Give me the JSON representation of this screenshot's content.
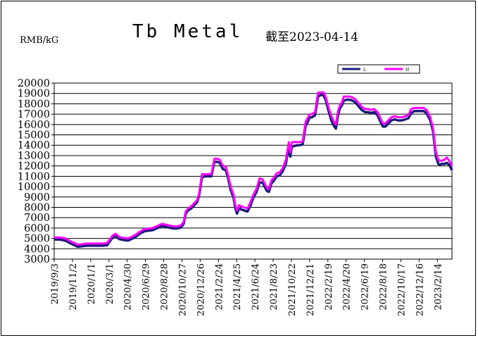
{
  "header": {
    "unit": "RMB/kG",
    "title": "Tb Metal",
    "as_of": "截至2023-04-14"
  },
  "chart_data": {
    "type": "line",
    "title": "Tb Metal",
    "ylabel": "RMB/kG",
    "xlabel": "",
    "ylim": [
      3000,
      20000
    ],
    "ytick_step": 1000,
    "grid": true,
    "legend_position": "top-right",
    "x_tick_labels": [
      "2019/9/3",
      "2019/11/2",
      "2020/1/1",
      "2020/3/1",
      "2020/4/30",
      "2020/6/29",
      "2020/8/28",
      "2020/10/27",
      "2020/12/26",
      "2021/2/24",
      "2021/4/25",
      "2021/6/24",
      "2021/8/23",
      "2021/10/22",
      "2021/12/21",
      "2022/2/19",
      "2022/4/20",
      "2022/6/19",
      "2022/8/18",
      "2022/10/17",
      "2022/12/16",
      "2023/2/14"
    ],
    "x_start": "2019-09-03",
    "x_end": "2023-04-14",
    "series": [
      {
        "name": "L",
        "color": "#1a1a7a",
        "x": [
          "2019-09-03",
          "2019-09-20",
          "2019-10-10",
          "2019-10-25",
          "2019-11-05",
          "2019-11-20",
          "2019-12-05",
          "2019-12-20",
          "2020-01-10",
          "2020-01-25",
          "2020-02-10",
          "2020-02-25",
          "2020-03-05",
          "2020-03-15",
          "2020-03-25",
          "2020-04-05",
          "2020-04-20",
          "2020-05-05",
          "2020-05-20",
          "2020-06-01",
          "2020-06-15",
          "2020-06-29",
          "2020-07-10",
          "2020-07-25",
          "2020-08-10",
          "2020-08-20",
          "2020-08-28",
          "2020-09-10",
          "2020-09-25",
          "2020-10-10",
          "2020-10-27",
          "2020-11-05",
          "2020-11-12",
          "2020-11-20",
          "2020-11-30",
          "2020-12-10",
          "2020-12-20",
          "2020-12-26",
          "2021-01-05",
          "2021-01-15",
          "2021-01-25",
          "2021-02-05",
          "2021-02-15",
          "2021-02-24",
          "2021-03-05",
          "2021-03-15",
          "2021-03-25",
          "2021-04-01",
          "2021-04-10",
          "2021-04-20",
          "2021-04-25",
          "2021-05-01",
          "2021-05-08",
          "2021-05-15",
          "2021-05-25",
          "2021-06-05",
          "2021-06-15",
          "2021-06-24",
          "2021-07-05",
          "2021-07-15",
          "2021-07-25",
          "2021-08-01",
          "2021-08-08",
          "2021-08-15",
          "2021-08-23",
          "2021-09-01",
          "2021-09-10",
          "2021-09-20",
          "2021-09-30",
          "2021-10-10",
          "2021-10-20",
          "2021-10-25",
          "2021-10-30",
          "2021-11-05",
          "2021-11-15",
          "2021-11-25",
          "2021-12-05",
          "2021-12-15",
          "2021-12-21",
          "2021-12-28",
          "2022-01-05",
          "2022-01-15",
          "2022-01-25",
          "2022-02-05",
          "2022-02-12",
          "2022-02-19",
          "2022-02-28",
          "2022-03-10",
          "2022-03-18",
          "2022-03-25",
          "2022-04-01",
          "2022-04-08",
          "2022-04-15",
          "2022-04-20",
          "2022-04-30",
          "2022-05-10",
          "2022-05-20",
          "2022-05-30",
          "2022-06-10",
          "2022-06-19",
          "2022-06-30",
          "2022-07-10",
          "2022-07-20",
          "2022-07-30",
          "2022-08-10",
          "2022-08-18",
          "2022-08-28",
          "2022-09-05",
          "2022-09-15",
          "2022-09-25",
          "2022-10-05",
          "2022-10-17",
          "2022-10-30",
          "2022-11-10",
          "2022-11-20",
          "2022-11-30",
          "2022-12-10",
          "2022-12-16",
          "2022-12-30",
          "2023-01-10",
          "2023-01-20",
          "2023-02-01",
          "2023-02-10",
          "2023-02-14",
          "2023-02-20",
          "2023-02-28",
          "2023-03-05",
          "2023-03-10",
          "2023-03-20",
          "2023-03-28",
          "2023-04-05",
          "2023-04-14"
        ],
        "values": [
          5000,
          5000,
          4900,
          4650,
          4500,
          4300,
          4350,
          4400,
          4400,
          4400,
          4400,
          4450,
          4800,
          5200,
          5350,
          5050,
          4950,
          4900,
          5100,
          5300,
          5600,
          5800,
          5850,
          5900,
          6100,
          6250,
          6300,
          6200,
          6100,
          6050,
          6150,
          6500,
          7500,
          7800,
          8000,
          8300,
          8600,
          9200,
          11000,
          11100,
          11100,
          11100,
          12500,
          12500,
          12400,
          11800,
          11700,
          11000,
          9800,
          9000,
          8100,
          7500,
          8000,
          7900,
          7800,
          7700,
          8300,
          9000,
          9600,
          10500,
          10500,
          10100,
          9700,
          9600,
          10400,
          10700,
          11100,
          11200,
          11600,
          12300,
          14000,
          13000,
          14000,
          14000,
          14100,
          14100,
          14200,
          16000,
          16300,
          16800,
          16800,
          17000,
          18800,
          19000,
          18900,
          18500,
          17500,
          16500,
          16000,
          15700,
          17000,
          17700,
          18000,
          18400,
          18500,
          18500,
          18400,
          18200,
          17800,
          17500,
          17300,
          17300,
          17200,
          17300,
          17000,
          16500,
          15900,
          15900,
          16200,
          16500,
          16600,
          16500,
          16500,
          16600,
          16700,
          17200,
          17400,
          17400,
          17400,
          17400,
          17200,
          16500,
          15500,
          14500,
          13000,
          12300,
          12200,
          12300,
          12300,
          12400,
          12200,
          11700
        ]
      },
      {
        "name": "H",
        "color": "#ff00ff",
        "x": [
          "2019-09-03",
          "2019-09-20",
          "2019-10-10",
          "2019-10-25",
          "2019-11-05",
          "2019-11-20",
          "2019-12-05",
          "2019-12-20",
          "2020-01-10",
          "2020-01-25",
          "2020-02-10",
          "2020-02-25",
          "2020-03-05",
          "2020-03-15",
          "2020-03-25",
          "2020-04-05",
          "2020-04-20",
          "2020-05-05",
          "2020-05-20",
          "2020-06-01",
          "2020-06-15",
          "2020-06-29",
          "2020-07-10",
          "2020-07-25",
          "2020-08-10",
          "2020-08-20",
          "2020-08-28",
          "2020-09-10",
          "2020-09-25",
          "2020-10-10",
          "2020-10-27",
          "2020-11-05",
          "2020-11-12",
          "2020-11-20",
          "2020-11-30",
          "2020-12-10",
          "2020-12-20",
          "2020-12-26",
          "2021-01-05",
          "2021-01-15",
          "2021-01-25",
          "2021-02-05",
          "2021-02-15",
          "2021-02-24",
          "2021-03-05",
          "2021-03-15",
          "2021-03-25",
          "2021-04-01",
          "2021-04-10",
          "2021-04-20",
          "2021-04-25",
          "2021-05-01",
          "2021-05-08",
          "2021-05-15",
          "2021-05-25",
          "2021-06-05",
          "2021-06-15",
          "2021-06-24",
          "2021-07-05",
          "2021-07-15",
          "2021-07-25",
          "2021-08-01",
          "2021-08-08",
          "2021-08-15",
          "2021-08-23",
          "2021-09-01",
          "2021-09-10",
          "2021-09-20",
          "2021-09-30",
          "2021-10-10",
          "2021-10-20",
          "2021-10-25",
          "2021-10-30",
          "2021-11-05",
          "2021-11-15",
          "2021-11-25",
          "2021-12-05",
          "2021-12-15",
          "2021-12-21",
          "2021-12-28",
          "2022-01-05",
          "2022-01-15",
          "2022-01-25",
          "2022-02-05",
          "2022-02-12",
          "2022-02-19",
          "2022-02-28",
          "2022-03-10",
          "2022-03-18",
          "2022-03-25",
          "2022-04-01",
          "2022-04-08",
          "2022-04-15",
          "2022-04-20",
          "2022-04-30",
          "2022-05-10",
          "2022-05-20",
          "2022-05-30",
          "2022-06-10",
          "2022-06-19",
          "2022-06-30",
          "2022-07-10",
          "2022-07-20",
          "2022-07-30",
          "2022-08-10",
          "2022-08-18",
          "2022-08-28",
          "2022-09-05",
          "2022-09-15",
          "2022-09-25",
          "2022-10-05",
          "2022-10-17",
          "2022-10-30",
          "2022-11-10",
          "2022-11-20",
          "2022-11-30",
          "2022-12-10",
          "2022-12-16",
          "2022-12-30",
          "2023-01-10",
          "2023-01-20",
          "2023-02-01",
          "2023-02-10",
          "2023-02-14",
          "2023-02-20",
          "2023-02-28",
          "2023-03-05",
          "2023-03-10",
          "2023-03-20",
          "2023-03-28",
          "2023-04-05",
          "2023-04-14"
        ],
        "values": [
          5100,
          5100,
          5000,
          4750,
          4600,
          4400,
          4450,
          4500,
          4500,
          4500,
          4500,
          4550,
          4900,
          5300,
          5450,
          5150,
          5050,
          5000,
          5200,
          5400,
          5700,
          5900,
          5950,
          6000,
          6200,
          6350,
          6400,
          6300,
          6200,
          6150,
          6250,
          6600,
          7600,
          7900,
          8100,
          8400,
          8700,
          9300,
          11200,
          11200,
          11200,
          11200,
          12700,
          12700,
          12600,
          12000,
          11900,
          11200,
          10000,
          9200,
          8300,
          7700,
          8200,
          8100,
          8000,
          7900,
          8500,
          9200,
          9800,
          10800,
          10700,
          10300,
          9900,
          9800,
          10600,
          10900,
          11300,
          11400,
          11800,
          12600,
          14300,
          13300,
          14300,
          14300,
          14300,
          14300,
          14400,
          16300,
          16600,
          17000,
          17000,
          17200,
          19100,
          19100,
          19100,
          18700,
          17700,
          16800,
          16300,
          16000,
          17300,
          17900,
          18200,
          18700,
          18700,
          18700,
          18600,
          18400,
          18000,
          17700,
          17500,
          17500,
          17400,
          17500,
          17200,
          16700,
          16100,
          16100,
          16400,
          16700,
          16800,
          16700,
          16700,
          16800,
          16900,
          17500,
          17600,
          17600,
          17600,
          17600,
          17400,
          16700,
          15700,
          14700,
          13300,
          12600,
          12500,
          12500,
          12600,
          12800,
          12500,
          12000
        ]
      }
    ]
  }
}
